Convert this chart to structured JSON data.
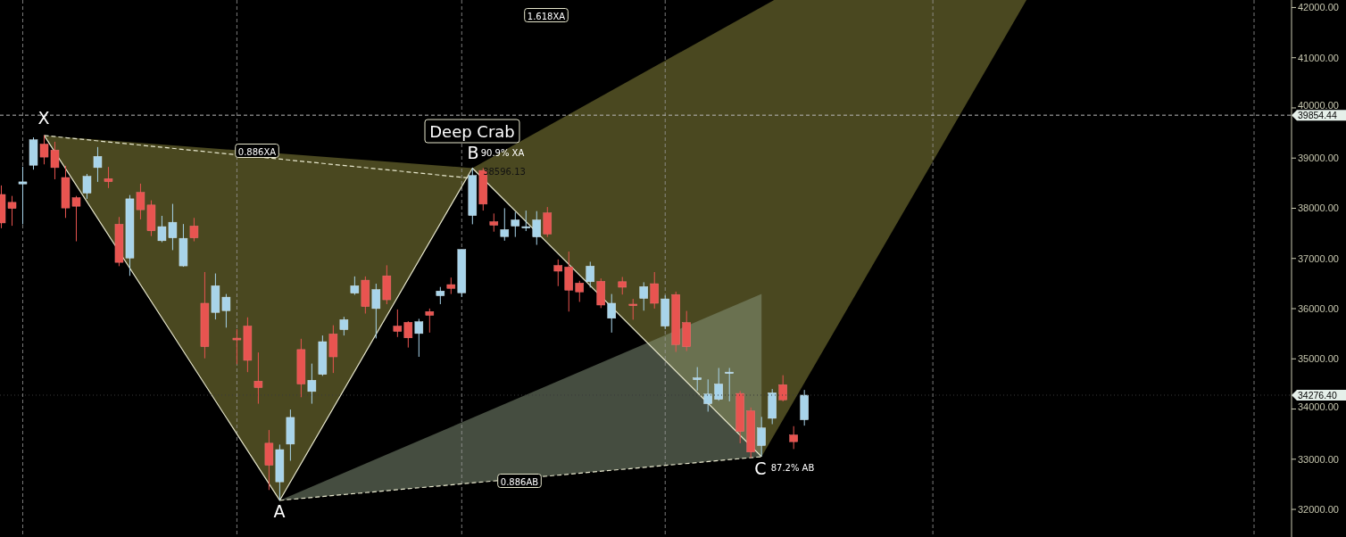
{
  "chart_data": {
    "type": "candlestick",
    "categories": [
      null,
      null,
      null,
      null,
      null,
      null,
      null,
      null,
      null,
      null,
      null,
      null,
      null,
      null,
      null,
      null,
      null,
      null,
      null,
      null,
      null,
      null,
      null,
      null,
      null,
      null,
      null,
      null,
      null,
      null,
      null,
      null,
      null,
      null,
      null,
      null,
      null,
      null,
      null,
      null,
      null,
      null,
      null,
      null,
      null,
      null,
      null,
      null,
      null,
      null,
      null,
      null,
      null,
      null,
      null,
      null,
      null,
      null,
      null,
      null,
      null,
      null,
      null,
      null,
      null,
      null,
      null,
      null,
      null,
      null,
      null,
      null,
      null,
      null,
      null,
      null,
      null,
      null,
      null,
      null,
      null,
      null,
      null,
      null,
      null,
      null,
      null,
      null,
      null,
      null,
      null,
      null,
      null,
      null,
      null,
      null,
      null,
      null,
      null,
      null,
      null,
      null,
      null,
      null,
      null,
      null,
      null,
      null,
      null,
      null,
      null,
      null,
      null,
      null,
      null,
      null,
      null,
      null,
      null,
      null,
      null
    ],
    "ohlc": [
      [
        38275,
        38455,
        37603,
        37708
      ],
      [
        38118,
        38246,
        37651,
        37996
      ],
      [
        38485,
        38828,
        37681,
        38526
      ],
      [
        38858,
        39412,
        38770,
        39365
      ],
      [
        39278,
        39452,
        38875,
        39020
      ],
      [
        39160,
        39325,
        38578,
        38811
      ],
      [
        38613,
        38846,
        37808,
        38006
      ],
      [
        38211,
        38246,
        37342,
        38041
      ],
      [
        38303,
        38683,
        38188,
        38636
      ],
      [
        38811,
        39220,
        38526,
        39033
      ],
      [
        38590,
        38823,
        38403,
        38531
      ],
      [
        37681,
        37826,
        36847,
        36922
      ],
      [
        37009,
        38263,
        36654,
        38188
      ],
      [
        38316,
        38491,
        37779,
        37971
      ],
      [
        38065,
        38158,
        37446,
        37551
      ],
      [
        37354,
        37849,
        37324,
        37634
      ],
      [
        37411,
        38088,
        37166,
        37721
      ],
      [
        36852,
        37686,
        36834,
        37401
      ],
      [
        37646,
        37808,
        37342,
        37411
      ],
      [
        36107,
        36729,
        35010,
        35243
      ],
      [
        35925,
        36701,
        35785,
        36456
      ],
      [
        35960,
        36292,
        35622,
        36229
      ],
      [
        35412,
        35592,
        34893,
        35377
      ],
      [
        35652,
        35827,
        34735,
        34970
      ],
      [
        34555,
        35127,
        34106,
        34428
      ],
      [
        33319,
        33581,
        32387,
        32881
      ],
      [
        32549,
        33291,
        32182,
        33191
      ],
      [
        33301,
        33990,
        32969,
        33833
      ],
      [
        35185,
        35400,
        34235,
        34498
      ],
      [
        34350,
        34905,
        34106,
        34573
      ],
      [
        34690,
        35465,
        34660,
        35342
      ],
      [
        35495,
        35669,
        34718,
        35040
      ],
      [
        35582,
        35837,
        35465,
        35780
      ],
      [
        36309,
        36642,
        36275,
        36456
      ],
      [
        36567,
        36642,
        35902,
        36042
      ],
      [
        36002,
        36497,
        35407,
        36379
      ],
      [
        36654,
        36864,
        36089,
        36177
      ],
      [
        35652,
        35984,
        35435,
        35547
      ],
      [
        35727,
        35750,
        35225,
        35418
      ],
      [
        35505,
        35797,
        35040,
        35739
      ],
      [
        35942,
        36002,
        35523,
        35867
      ],
      [
        36257,
        36432,
        36089,
        36351
      ],
      [
        36479,
        36619,
        36292,
        36404
      ],
      [
        36316,
        37179,
        36234,
        37179
      ],
      [
        37856,
        38800,
        37681,
        38653
      ],
      [
        38753,
        38800,
        37954,
        38083
      ],
      [
        37733,
        37896,
        37534,
        37663
      ],
      [
        37436,
        38001,
        37354,
        37576
      ],
      [
        37646,
        37926,
        37429,
        37768
      ],
      [
        37611,
        37954,
        37546,
        37634
      ],
      [
        37429,
        37943,
        37271,
        37768
      ],
      [
        37908,
        38024,
        37429,
        37488
      ],
      [
        36859,
        36981,
        36449,
        36747
      ],
      [
        36829,
        37138,
        35942,
        36369
      ],
      [
        36509,
        36554,
        36135,
        36334
      ],
      [
        36537,
        36934,
        36421,
        36847
      ],
      [
        36544,
        36602,
        36012,
        36072
      ],
      [
        35809,
        36292,
        35523,
        36107
      ],
      [
        36537,
        36631,
        36281,
        36427
      ],
      [
        36089,
        36194,
        35780,
        36059
      ],
      [
        36205,
        36526,
        35960,
        36439
      ],
      [
        36497,
        36729,
        36002,
        36107
      ],
      [
        35652,
        36264,
        35592,
        36194
      ],
      [
        36281,
        36339,
        35138,
        35285
      ],
      [
        35722,
        35954,
        35155,
        35243
      ],
      [
        34585,
        34835,
        34368,
        34620
      ],
      [
        34106,
        34590,
        33948,
        34298
      ],
      [
        34193,
        34818,
        34165,
        34498
      ],
      [
        34708,
        34818,
        34153,
        34735
      ],
      [
        34310,
        34358,
        33319,
        33553
      ],
      [
        33961,
        34031,
        33029,
        33144
      ],
      [
        33273,
        33843,
        33057,
        33623
      ],
      [
        33815,
        34398,
        33698,
        34323
      ],
      [
        34485,
        34673,
        34153,
        34183
      ],
      [
        33483,
        33658,
        33203,
        33349
      ],
      [
        33786,
        34380,
        33669,
        34276.4
      ],
      null,
      null,
      null,
      null,
      null,
      null,
      null,
      null,
      null,
      null,
      null,
      null,
      null,
      null,
      null,
      null,
      null,
      null,
      null,
      null,
      null,
      null,
      null,
      null,
      null,
      null,
      null,
      null,
      null,
      null,
      null,
      null,
      null,
      null,
      null,
      null,
      null,
      null,
      null,
      null,
      null,
      null,
      null,
      null,
      null
    ],
    "series": [
      {
        "type": "line",
        "values": [
          null,
          null,
          null,
          null,
          39450,
          null,
          null,
          null,
          null,
          null,
          null,
          null,
          null,
          null,
          null,
          null,
          null,
          null,
          null,
          null,
          null,
          null,
          null,
          null,
          null,
          null,
          32180,
          null,
          null,
          null,
          null,
          null,
          null,
          null,
          null,
          null,
          null,
          null,
          null,
          null,
          null,
          null,
          null,
          null,
          38800,
          null,
          null,
          null,
          null,
          null,
          null,
          null,
          null,
          null,
          null,
          null,
          null,
          null,
          null,
          null,
          null,
          null,
          null,
          null,
          null,
          null,
          null,
          null,
          null,
          null,
          null,
          33050,
          null,
          null,
          null,
          null,
          null,
          null,
          null,
          null,
          null,
          null,
          null,
          null,
          null,
          null,
          null,
          null,
          null,
          null,
          null,
          null,
          null,
          null,
          null,
          null,
          null,
          null,
          null,
          null,
          null,
          null,
          null,
          null,
          null,
          null,
          null,
          null,
          null,
          null,
          null,
          null,
          null,
          null,
          null,
          null,
          null,
          null,
          null,
          null,
          null
        ],
        "color": "#e6e6cc"
      },
      {
        "type": "line",
        "values": [
          null,
          null,
          null,
          null,
          39450,
          null,
          null,
          null,
          null,
          null,
          null,
          null,
          null,
          null,
          null,
          null,
          null,
          null,
          null,
          null,
          null,
          null,
          null,
          null,
          null,
          null,
          null,
          null,
          null,
          null,
          null,
          null,
          null,
          null,
          null,
          null,
          null,
          null,
          null,
          null,
          null,
          null,
          null,
          null,
          38596.13,
          null,
          null,
          null,
          null,
          null,
          null,
          null,
          null,
          null,
          null,
          null,
          null,
          null,
          null,
          null,
          null,
          null,
          null,
          null,
          null,
          null,
          null,
          null,
          null,
          null,
          null,
          null,
          null,
          null,
          null,
          null,
          null,
          null,
          null,
          null,
          null,
          null,
          null,
          null,
          null,
          null,
          null,
          null,
          null,
          null,
          null,
          null,
          null,
          null,
          null,
          null,
          null,
          null,
          null,
          null,
          null,
          null,
          null,
          null,
          null,
          null,
          null,
          null,
          null,
          null,
          null,
          null,
          null,
          null,
          null,
          null,
          null,
          null,
          null,
          null,
          null
        ],
        "color": "#e6e6cc",
        "line_style": "dashed"
      },
      {
        "type": "line",
        "values": [
          null,
          null,
          null,
          null,
          null,
          null,
          null,
          null,
          null,
          null,
          null,
          null,
          null,
          null,
          null,
          null,
          null,
          null,
          null,
          null,
          null,
          null,
          null,
          null,
          null,
          null,
          32180,
          null,
          null,
          null,
          null,
          null,
          null,
          null,
          null,
          null,
          null,
          null,
          null,
          null,
          null,
          null,
          null,
          null,
          null,
          null,
          null,
          null,
          null,
          null,
          null,
          null,
          null,
          null,
          null,
          null,
          null,
          null,
          null,
          null,
          null,
          null,
          null,
          null,
          null,
          null,
          null,
          null,
          null,
          null,
          null,
          33050,
          null,
          null,
          null,
          null,
          null,
          null,
          null,
          null,
          null,
          null,
          null,
          null,
          null,
          null,
          null,
          null,
          null,
          null,
          null,
          null,
          null,
          null,
          null,
          null,
          null,
          null,
          null,
          null,
          null,
          null,
          null,
          null,
          null,
          null,
          null,
          null,
          null,
          null,
          null,
          null,
          null,
          null,
          null,
          null,
          null,
          null,
          null,
          null,
          null
        ],
        "color": "#e6e6cc",
        "line_style": "dashed"
      }
    ],
    "ylim": [
      31450,
      42150
    ],
    "yticks": [
      {
        "value": 32000,
        "label": "32000.00"
      },
      {
        "value": 33000,
        "label": "33000.00"
      },
      {
        "value": 34000,
        "label": "34000.00"
      },
      {
        "value": 35000,
        "label": "35000.00"
      },
      {
        "value": 36000,
        "label": "36000.00"
      },
      {
        "value": 37000,
        "label": "37000.00"
      },
      {
        "value": 38000,
        "label": "38000.00"
      },
      {
        "value": 39000,
        "label": "39000.00"
      },
      {
        "value": 40000,
        "label": "40000.00"
      },
      {
        "value": 41000,
        "label": "41000.00"
      },
      {
        "value": 42000,
        "label": "42000.00"
      }
    ],
    "tick_labels": "y",
    "ref_lines": [
      {
        "axis": "y",
        "value": 39854.44,
        "label": "39854.44",
        "line_style": "dashed",
        "color": "#bbbbbb"
      },
      {
        "axis": "y",
        "value": 34276.4,
        "label": "34276.40",
        "line_style": "dotted",
        "color": "#3a3a3a"
      }
    ],
    "annotations": [
      "X",
      "A",
      "B",
      "C",
      "Deep Crab",
      "90.9% XA",
      "38596.13",
      "0.886XA",
      "0.886AB",
      "87.2% AB",
      "1.618XA"
    ]
  }
}
